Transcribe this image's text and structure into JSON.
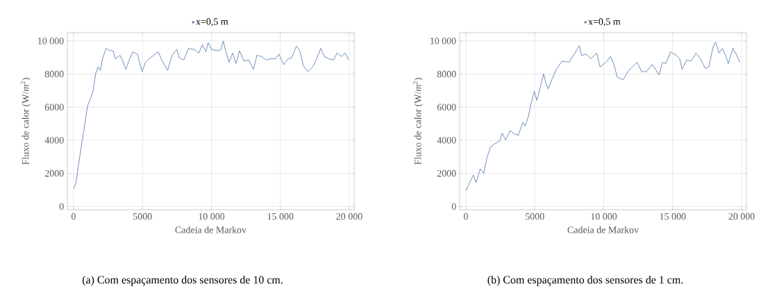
{
  "chart_data": [
    {
      "type": "line",
      "title": null,
      "xlabel": "Cadeia de Markov",
      "ylabel": "Fluxo de calor (W/*m*$^{2}$)",
      "x": [
        0,
        170,
        340,
        590,
        760,
        1010,
        1260,
        1430,
        1600,
        1770,
        1940,
        2100,
        2360,
        2610,
        2860,
        3030,
        3370,
        3540,
        3790,
        4040,
        4290,
        4630,
        4970,
        5220,
        5470,
        5810,
        6140,
        6400,
        6820,
        7150,
        7490,
        7660,
        8000,
        8330,
        8750,
        9090,
        9340,
        9600,
        9760,
        10020,
        10440,
        10690,
        10860,
        11030,
        11280,
        11530,
        11780,
        12040,
        12370,
        12710,
        13050,
        13300,
        13640,
        13970,
        14310,
        14650,
        14900,
        15240,
        15570,
        15820,
        16160,
        16410,
        16670,
        17000,
        17340,
        17590,
        17930,
        18180,
        18520,
        18860,
        19110,
        19440,
        19700,
        19950
      ],
      "series": [
        {
          "name": "x=0,5 m",
          "color": "#5e81b5",
          "values": [
            1070,
            1400,
            2400,
            3800,
            4640,
            6050,
            6600,
            7030,
            8010,
            8430,
            8220,
            8920,
            9550,
            9410,
            9410,
            8920,
            9130,
            8850,
            8290,
            8850,
            9340,
            9200,
            8150,
            8710,
            8920,
            9130,
            9340,
            8850,
            8220,
            9130,
            9480,
            8990,
            8850,
            9550,
            9480,
            9270,
            9760,
            9340,
            9900,
            9480,
            9410,
            9480,
            10000,
            9410,
            8710,
            9270,
            8640,
            9410,
            8780,
            8850,
            8290,
            9130,
            9060,
            8850,
            8920,
            8920,
            9200,
            8570,
            8920,
            8990,
            9690,
            9410,
            8500,
            8150,
            8430,
            8850,
            9550,
            9060,
            8920,
            8850,
            9270,
            9060,
            9270,
            8850
          ]
        }
      ],
      "xlim": [
        -450,
        20350
      ],
      "ylim": [
        -200,
        10500
      ],
      "xticks": [
        0,
        5000,
        {
          "value": 10000,
          "label": "10 000"
        },
        {
          "value": 15000,
          "label": "15 000"
        },
        {
          "value": 20000,
          "label": "20 000"
        }
      ],
      "yticks": [
        0,
        2000,
        4000,
        6000,
        8000,
        {
          "value": 10000,
          "label": "10 000"
        }
      ],
      "grid": true,
      "legend": "top",
      "annotations": [
        "(a)  Com espaçamento dos sensores de 10 cm."
      ]
    },
    {
      "type": "line",
      "xlabel": "Cadeia de Markov",
      "ylabel": "Fluxo de calor (W/*m*$^{2}$)",
      "x": [
        0,
        200,
        540,
        740,
        1040,
        1290,
        1540,
        1790,
        2130,
        2460,
        2630,
        2880,
        3210,
        3550,
        3800,
        4130,
        4300,
        4550,
        4720,
        4970,
        5140,
        5390,
        5640,
        5810,
        5980,
        6230,
        6560,
        6980,
        7480,
        7900,
        8230,
        8400,
        8730,
        9070,
        9490,
        9740,
        10160,
        10490,
        10740,
        10990,
        11410,
        11750,
        12080,
        12420,
        12750,
        13090,
        13510,
        13760,
        14010,
        14260,
        14510,
        14850,
        15260,
        15510,
        15680,
        16020,
        16350,
        16690,
        17020,
        17360,
        17610,
        17940,
        18110,
        18360,
        18610,
        18860,
        19030,
        19360,
        19610,
        19870
      ],
      "series": [
        {
          "name": "x=0,5 m",
          "color": "#5e81b5",
          "values": [
            950,
            1300,
            1900,
            1440,
            2280,
            2000,
            2980,
            3600,
            3810,
            3950,
            4440,
            4020,
            4580,
            4370,
            4300,
            5070,
            4860,
            5490,
            6190,
            6960,
            6410,
            7170,
            8010,
            7450,
            7100,
            7660,
            8290,
            8780,
            8710,
            9260,
            9710,
            9130,
            9200,
            8920,
            9260,
            8430,
            8710,
            9060,
            8570,
            7800,
            7660,
            8150,
            8430,
            8710,
            8150,
            8150,
            8570,
            8290,
            7940,
            8710,
            8640,
            9340,
            9130,
            8920,
            8290,
            8850,
            8780,
            9270,
            8920,
            8340,
            8410,
            9660,
            9930,
            9270,
            9550,
            9060,
            8640,
            9550,
            9200,
            8710
          ]
        }
      ],
      "xlim": [
        -450,
        20350
      ],
      "ylim": [
        -200,
        10500
      ],
      "xticks": [
        0,
        5000,
        {
          "value": 10000,
          "label": "10 000"
        },
        {
          "value": 15000,
          "label": "15 000"
        },
        {
          "value": 20000,
          "label": "20 000"
        }
      ],
      "yticks": [
        0,
        2000,
        4000,
        6000,
        8000,
        {
          "value": 10000,
          "label": "10 000"
        }
      ],
      "grid": true,
      "legend": "top",
      "annotations": [
        "(b)  Com espaçamento dos sensores de 1 cm."
      ]
    }
  ]
}
